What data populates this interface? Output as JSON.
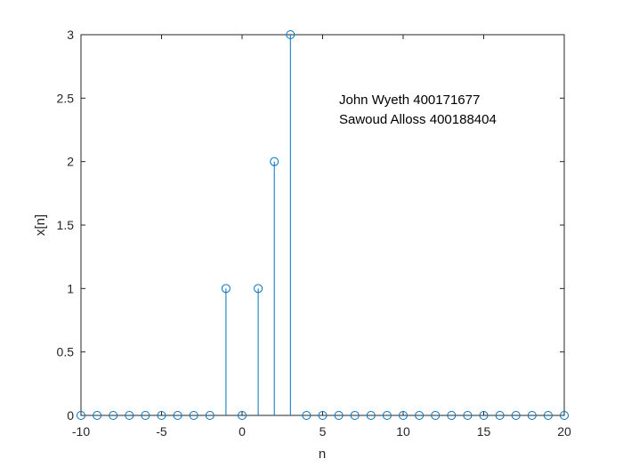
{
  "chart_data": {
    "type": "stem",
    "title": "",
    "xlabel": "n",
    "ylabel": "x[n]",
    "xlim": [
      -10,
      20
    ],
    "ylim": [
      0,
      3
    ],
    "xticks": [
      -10,
      -5,
      0,
      5,
      10,
      15,
      20
    ],
    "yticks": [
      0,
      0.5,
      1,
      1.5,
      2,
      2.5,
      3
    ],
    "grid": false,
    "x": [
      -10,
      -9,
      -8,
      -7,
      -6,
      -5,
      -4,
      -3,
      -2,
      -1,
      0,
      1,
      2,
      3,
      4,
      5,
      6,
      7,
      8,
      9,
      10,
      11,
      12,
      13,
      14,
      15,
      16,
      17,
      18,
      19,
      20
    ],
    "values": [
      0,
      0,
      0,
      0,
      0,
      0,
      0,
      0,
      0,
      1,
      0,
      1,
      2,
      3,
      0,
      0,
      0,
      0,
      0,
      0,
      0,
      0,
      0,
      0,
      0,
      0,
      0,
      0,
      0,
      0,
      0
    ],
    "color": "#0072BD",
    "annotations": [
      "John Wyeth 400171677",
      "Sawoud Alloss 400188404"
    ]
  }
}
